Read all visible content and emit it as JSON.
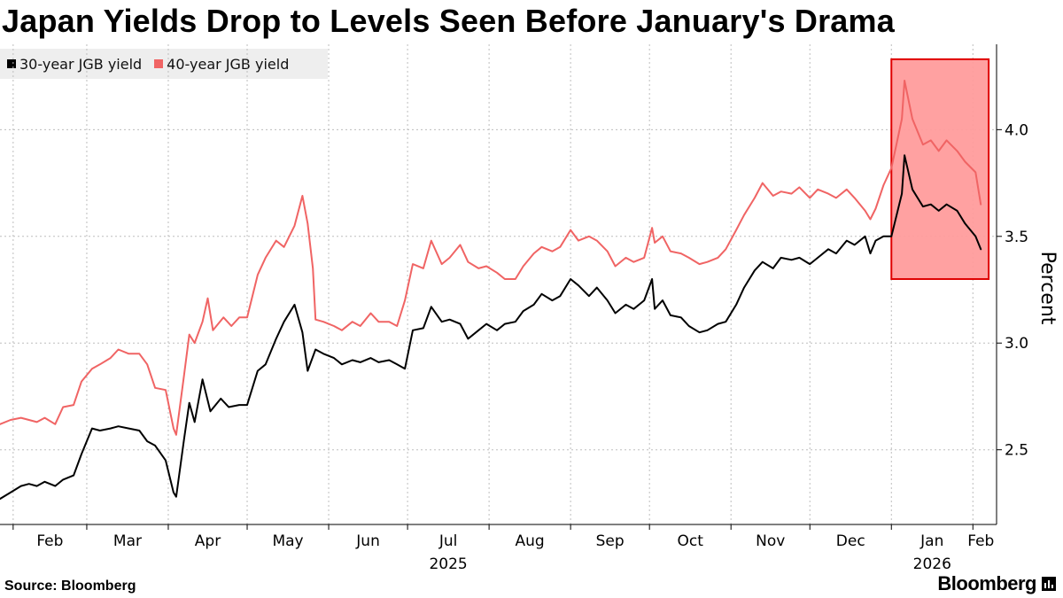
{
  "title": "Japan Yields Drop to Levels Seen Before January's Drama",
  "source": "Source: Bloomberg",
  "brand": "Bloomberg",
  "brand_icon": "bar-chart-icon",
  "colors": {
    "series_30y": "#000000",
    "series_40y": "#f06464",
    "highlight_fill": "#ff9c9c",
    "highlight_stroke": "#e00000",
    "grid": "#bdbdbd"
  },
  "chart_data": {
    "type": "line",
    "title": "Japan Yields Drop to Levels Seen Before January's Drama",
    "ylabel": "Percent",
    "xlabel": "",
    "ylim": [
      2.15,
      4.4
    ],
    "xlim": [
      "2025-01-27",
      "2026-02-10"
    ],
    "yticks": [
      2.5,
      3.0,
      3.5,
      4.0
    ],
    "ytick_labels": [
      "2.5",
      "3.0",
      "3.5",
      "4.0"
    ],
    "xticks": [
      {
        "date": "2025-02-01",
        "label": "Feb"
      },
      {
        "date": "2025-03-01",
        "label": "Mar"
      },
      {
        "date": "2025-04-01",
        "label": "Apr"
      },
      {
        "date": "2025-05-01",
        "label": "May"
      },
      {
        "date": "2025-06-01",
        "label": "Jun"
      },
      {
        "date": "2025-07-01",
        "label": "Jul"
      },
      {
        "date": "2025-08-01",
        "label": "Aug"
      },
      {
        "date": "2025-09-01",
        "label": "Sep"
      },
      {
        "date": "2025-10-01",
        "label": "Oct"
      },
      {
        "date": "2025-11-01",
        "label": "Nov"
      },
      {
        "date": "2025-12-01",
        "label": "Dec"
      },
      {
        "date": "2026-01-01",
        "label": "Jan"
      },
      {
        "date": "2026-02-01",
        "label": "Feb"
      }
    ],
    "year_labels": [
      {
        "date": "2025-07-01",
        "label": "2025"
      },
      {
        "date": "2026-01-01",
        "label": "2026"
      }
    ],
    "grid": true,
    "legend_position": "top-left",
    "highlight": {
      "x_start": "2026-01-01",
      "x_end": "2026-02-07",
      "y_min": 3.3,
      "y_max": 4.33
    },
    "series": [
      {
        "name": "30-year JGB yield",
        "color": "#000000",
        "points": [
          [
            "2025-01-27",
            2.27
          ],
          [
            "2025-01-31",
            2.3
          ],
          [
            "2025-02-04",
            2.33
          ],
          [
            "2025-02-07",
            2.34
          ],
          [
            "2025-02-10",
            2.33
          ],
          [
            "2025-02-13",
            2.35
          ],
          [
            "2025-02-17",
            2.33
          ],
          [
            "2025-02-20",
            2.36
          ],
          [
            "2025-02-24",
            2.38
          ],
          [
            "2025-02-27",
            2.48
          ],
          [
            "2025-03-03",
            2.6
          ],
          [
            "2025-03-06",
            2.59
          ],
          [
            "2025-03-10",
            2.6
          ],
          [
            "2025-03-13",
            2.61
          ],
          [
            "2025-03-17",
            2.6
          ],
          [
            "2025-03-21",
            2.59
          ],
          [
            "2025-03-24",
            2.54
          ],
          [
            "2025-03-27",
            2.52
          ],
          [
            "2025-03-31",
            2.45
          ],
          [
            "2025-04-03",
            2.3
          ],
          [
            "2025-04-04",
            2.28
          ],
          [
            "2025-04-07",
            2.55
          ],
          [
            "2025-04-09",
            2.72
          ],
          [
            "2025-04-11",
            2.63
          ],
          [
            "2025-04-14",
            2.83
          ],
          [
            "2025-04-17",
            2.68
          ],
          [
            "2025-04-21",
            2.74
          ],
          [
            "2025-04-24",
            2.7
          ],
          [
            "2025-04-28",
            2.71
          ],
          [
            "2025-05-01",
            2.71
          ],
          [
            "2025-05-05",
            2.87
          ],
          [
            "2025-05-08",
            2.9
          ],
          [
            "2025-05-12",
            3.02
          ],
          [
            "2025-05-15",
            3.1
          ],
          [
            "2025-05-19",
            3.18
          ],
          [
            "2025-05-22",
            3.05
          ],
          [
            "2025-05-24",
            2.87
          ],
          [
            "2025-05-27",
            2.97
          ],
          [
            "2025-05-30",
            2.95
          ],
          [
            "2025-06-03",
            2.93
          ],
          [
            "2025-06-06",
            2.9
          ],
          [
            "2025-06-10",
            2.92
          ],
          [
            "2025-06-13",
            2.91
          ],
          [
            "2025-06-17",
            2.93
          ],
          [
            "2025-06-20",
            2.91
          ],
          [
            "2025-06-24",
            2.92
          ],
          [
            "2025-06-27",
            2.9
          ],
          [
            "2025-06-30",
            2.88
          ],
          [
            "2025-07-03",
            3.06
          ],
          [
            "2025-07-07",
            3.07
          ],
          [
            "2025-07-10",
            3.17
          ],
          [
            "2025-07-14",
            3.1
          ],
          [
            "2025-07-17",
            3.11
          ],
          [
            "2025-07-21",
            3.09
          ],
          [
            "2025-07-24",
            3.02
          ],
          [
            "2025-07-28",
            3.06
          ],
          [
            "2025-07-31",
            3.09
          ],
          [
            "2025-08-04",
            3.06
          ],
          [
            "2025-08-07",
            3.09
          ],
          [
            "2025-08-11",
            3.1
          ],
          [
            "2025-08-14",
            3.15
          ],
          [
            "2025-08-18",
            3.18
          ],
          [
            "2025-08-21",
            3.23
          ],
          [
            "2025-08-25",
            3.2
          ],
          [
            "2025-08-28",
            3.22
          ],
          [
            "2025-09-01",
            3.3
          ],
          [
            "2025-09-04",
            3.27
          ],
          [
            "2025-09-08",
            3.22
          ],
          [
            "2025-09-11",
            3.26
          ],
          [
            "2025-09-15",
            3.2
          ],
          [
            "2025-09-18",
            3.14
          ],
          [
            "2025-09-22",
            3.18
          ],
          [
            "2025-09-25",
            3.16
          ],
          [
            "2025-09-29",
            3.2
          ],
          [
            "2025-10-02",
            3.3
          ],
          [
            "2025-10-03",
            3.16
          ],
          [
            "2025-10-06",
            3.2
          ],
          [
            "2025-10-09",
            3.13
          ],
          [
            "2025-10-13",
            3.12
          ],
          [
            "2025-10-16",
            3.08
          ],
          [
            "2025-10-20",
            3.05
          ],
          [
            "2025-10-23",
            3.06
          ],
          [
            "2025-10-27",
            3.09
          ],
          [
            "2025-10-30",
            3.1
          ],
          [
            "2025-11-03",
            3.18
          ],
          [
            "2025-11-06",
            3.26
          ],
          [
            "2025-11-10",
            3.34
          ],
          [
            "2025-11-13",
            3.38
          ],
          [
            "2025-11-17",
            3.35
          ],
          [
            "2025-11-20",
            3.4
          ],
          [
            "2025-11-24",
            3.39
          ],
          [
            "2025-11-27",
            3.4
          ],
          [
            "2025-12-01",
            3.37
          ],
          [
            "2025-12-04",
            3.4
          ],
          [
            "2025-12-08",
            3.44
          ],
          [
            "2025-12-11",
            3.42
          ],
          [
            "2025-12-15",
            3.48
          ],
          [
            "2025-12-18",
            3.46
          ],
          [
            "2025-12-22",
            3.5
          ],
          [
            "2025-12-24",
            3.42
          ],
          [
            "2025-12-26",
            3.48
          ],
          [
            "2025-12-29",
            3.5
          ],
          [
            "2026-01-01",
            3.5
          ],
          [
            "2026-01-05",
            3.7
          ],
          [
            "2026-01-06",
            3.88
          ],
          [
            "2026-01-09",
            3.72
          ],
          [
            "2026-01-13",
            3.64
          ],
          [
            "2026-01-16",
            3.65
          ],
          [
            "2026-01-19",
            3.62
          ],
          [
            "2026-01-22",
            3.65
          ],
          [
            "2026-01-26",
            3.62
          ],
          [
            "2026-01-29",
            3.56
          ],
          [
            "2026-02-02",
            3.5
          ],
          [
            "2026-02-04",
            3.44
          ]
        ]
      },
      {
        "name": "40-year JGB yield",
        "color": "#f06464",
        "points": [
          [
            "2025-01-27",
            2.62
          ],
          [
            "2025-01-31",
            2.64
          ],
          [
            "2025-02-04",
            2.65
          ],
          [
            "2025-02-07",
            2.64
          ],
          [
            "2025-02-10",
            2.63
          ],
          [
            "2025-02-13",
            2.65
          ],
          [
            "2025-02-17",
            2.62
          ],
          [
            "2025-02-20",
            2.7
          ],
          [
            "2025-02-24",
            2.71
          ],
          [
            "2025-02-27",
            2.82
          ],
          [
            "2025-03-03",
            2.88
          ],
          [
            "2025-03-06",
            2.9
          ],
          [
            "2025-03-10",
            2.93
          ],
          [
            "2025-03-13",
            2.97
          ],
          [
            "2025-03-17",
            2.95
          ],
          [
            "2025-03-21",
            2.95
          ],
          [
            "2025-03-24",
            2.9
          ],
          [
            "2025-03-27",
            2.79
          ],
          [
            "2025-03-31",
            2.78
          ],
          [
            "2025-04-03",
            2.6
          ],
          [
            "2025-04-04",
            2.57
          ],
          [
            "2025-04-07",
            2.85
          ],
          [
            "2025-04-09",
            3.04
          ],
          [
            "2025-04-11",
            3.0
          ],
          [
            "2025-04-14",
            3.1
          ],
          [
            "2025-04-16",
            3.21
          ],
          [
            "2025-04-18",
            3.06
          ],
          [
            "2025-04-22",
            3.12
          ],
          [
            "2025-04-25",
            3.08
          ],
          [
            "2025-04-28",
            3.12
          ],
          [
            "2025-05-01",
            3.12
          ],
          [
            "2025-05-05",
            3.32
          ],
          [
            "2025-05-08",
            3.4
          ],
          [
            "2025-05-12",
            3.48
          ],
          [
            "2025-05-15",
            3.45
          ],
          [
            "2025-05-19",
            3.55
          ],
          [
            "2025-05-22",
            3.69
          ],
          [
            "2025-05-24",
            3.56
          ],
          [
            "2025-05-26",
            3.35
          ],
          [
            "2025-05-27",
            3.11
          ],
          [
            "2025-05-30",
            3.1
          ],
          [
            "2025-06-03",
            3.08
          ],
          [
            "2025-06-06",
            3.06
          ],
          [
            "2025-06-10",
            3.1
          ],
          [
            "2025-06-13",
            3.08
          ],
          [
            "2025-06-17",
            3.14
          ],
          [
            "2025-06-20",
            3.1
          ],
          [
            "2025-06-24",
            3.1
          ],
          [
            "2025-06-27",
            3.08
          ],
          [
            "2025-06-30",
            3.2
          ],
          [
            "2025-07-03",
            3.37
          ],
          [
            "2025-07-07",
            3.35
          ],
          [
            "2025-07-10",
            3.48
          ],
          [
            "2025-07-14",
            3.37
          ],
          [
            "2025-07-17",
            3.4
          ],
          [
            "2025-07-21",
            3.46
          ],
          [
            "2025-07-24",
            3.38
          ],
          [
            "2025-07-28",
            3.35
          ],
          [
            "2025-07-31",
            3.36
          ],
          [
            "2025-08-04",
            3.33
          ],
          [
            "2025-08-07",
            3.3
          ],
          [
            "2025-08-11",
            3.3
          ],
          [
            "2025-08-14",
            3.36
          ],
          [
            "2025-08-18",
            3.42
          ],
          [
            "2025-08-21",
            3.45
          ],
          [
            "2025-08-25",
            3.43
          ],
          [
            "2025-08-28",
            3.45
          ],
          [
            "2025-09-01",
            3.53
          ],
          [
            "2025-09-04",
            3.48
          ],
          [
            "2025-09-08",
            3.5
          ],
          [
            "2025-09-11",
            3.48
          ],
          [
            "2025-09-15",
            3.43
          ],
          [
            "2025-09-18",
            3.36
          ],
          [
            "2025-09-22",
            3.4
          ],
          [
            "2025-09-25",
            3.38
          ],
          [
            "2025-09-29",
            3.4
          ],
          [
            "2025-10-02",
            3.54
          ],
          [
            "2025-10-03",
            3.47
          ],
          [
            "2025-10-06",
            3.5
          ],
          [
            "2025-10-09",
            3.43
          ],
          [
            "2025-10-13",
            3.42
          ],
          [
            "2025-10-16",
            3.4
          ],
          [
            "2025-10-20",
            3.37
          ],
          [
            "2025-10-23",
            3.38
          ],
          [
            "2025-10-27",
            3.4
          ],
          [
            "2025-10-30",
            3.44
          ],
          [
            "2025-11-03",
            3.53
          ],
          [
            "2025-11-06",
            3.6
          ],
          [
            "2025-11-10",
            3.68
          ],
          [
            "2025-11-13",
            3.75
          ],
          [
            "2025-11-17",
            3.69
          ],
          [
            "2025-11-20",
            3.71
          ],
          [
            "2025-11-24",
            3.7
          ],
          [
            "2025-11-27",
            3.73
          ],
          [
            "2025-12-01",
            3.68
          ],
          [
            "2025-12-04",
            3.72
          ],
          [
            "2025-12-08",
            3.7
          ],
          [
            "2025-12-11",
            3.68
          ],
          [
            "2025-12-15",
            3.72
          ],
          [
            "2025-12-18",
            3.68
          ],
          [
            "2025-12-22",
            3.62
          ],
          [
            "2025-12-24",
            3.58
          ],
          [
            "2025-12-26",
            3.63
          ],
          [
            "2025-12-29",
            3.74
          ],
          [
            "2026-01-01",
            3.82
          ],
          [
            "2026-01-05",
            4.05
          ],
          [
            "2026-01-06",
            4.23
          ],
          [
            "2026-01-09",
            4.05
          ],
          [
            "2026-01-13",
            3.93
          ],
          [
            "2026-01-16",
            3.95
          ],
          [
            "2026-01-19",
            3.9
          ],
          [
            "2026-01-22",
            3.95
          ],
          [
            "2026-01-26",
            3.9
          ],
          [
            "2026-01-29",
            3.85
          ],
          [
            "2026-02-02",
            3.8
          ],
          [
            "2026-02-04",
            3.65
          ]
        ]
      }
    ]
  }
}
